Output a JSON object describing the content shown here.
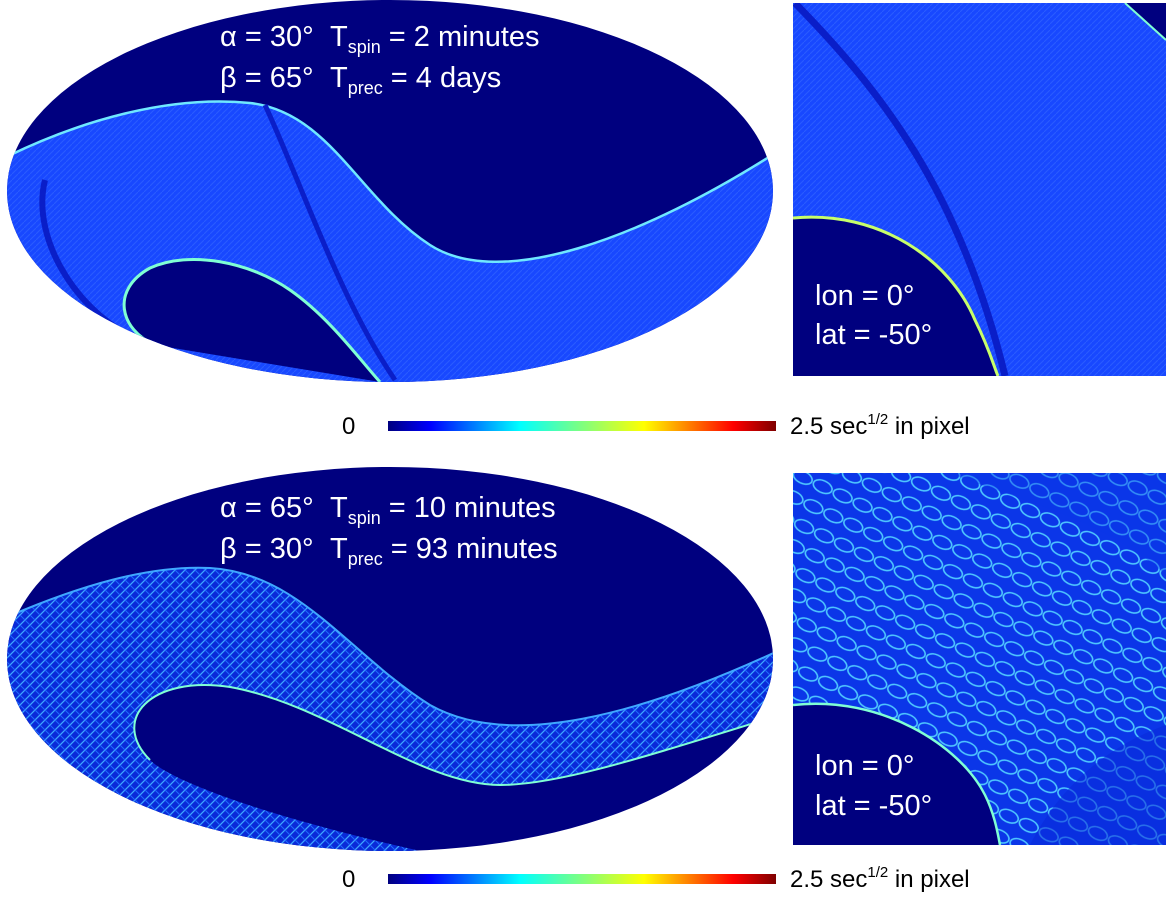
{
  "panels": [
    {
      "alpha": "α = 30°",
      "beta": "β = 65°",
      "t_spin": "T",
      "t_spin_sub": "spin",
      "t_spin_value": " = 2 minutes",
      "t_prec": "T",
      "t_prec_sub": "prec",
      "t_prec_value": " = 4 days",
      "zoom_lon": "lon = 0°",
      "zoom_lat": "lat = -50°",
      "colorbar_min": "0",
      "colorbar_max": "2.5 sec",
      "colorbar_max_sup": "1/2",
      "colorbar_unit": " in pixel"
    },
    {
      "alpha": "α = 65°",
      "beta": "β = 30°",
      "t_spin": "T",
      "t_spin_sub": "spin",
      "t_spin_value": " = 10 minutes",
      "t_prec": "T",
      "t_prec_sub": "prec",
      "t_prec_value": " = 93 minutes",
      "zoom_lon": "lon = 0°",
      "zoom_lat": "lat = -50°",
      "colorbar_min": "0",
      "colorbar_max": "2.5 sec",
      "colorbar_max_sup": "1/2",
      "colorbar_unit": " in pixel"
    }
  ],
  "colors": {
    "background_map": "#00007f",
    "band_fill": "#1645ff",
    "band_edge": "#7fffd4",
    "label_text": "#ffffff"
  },
  "colormap": "jet"
}
